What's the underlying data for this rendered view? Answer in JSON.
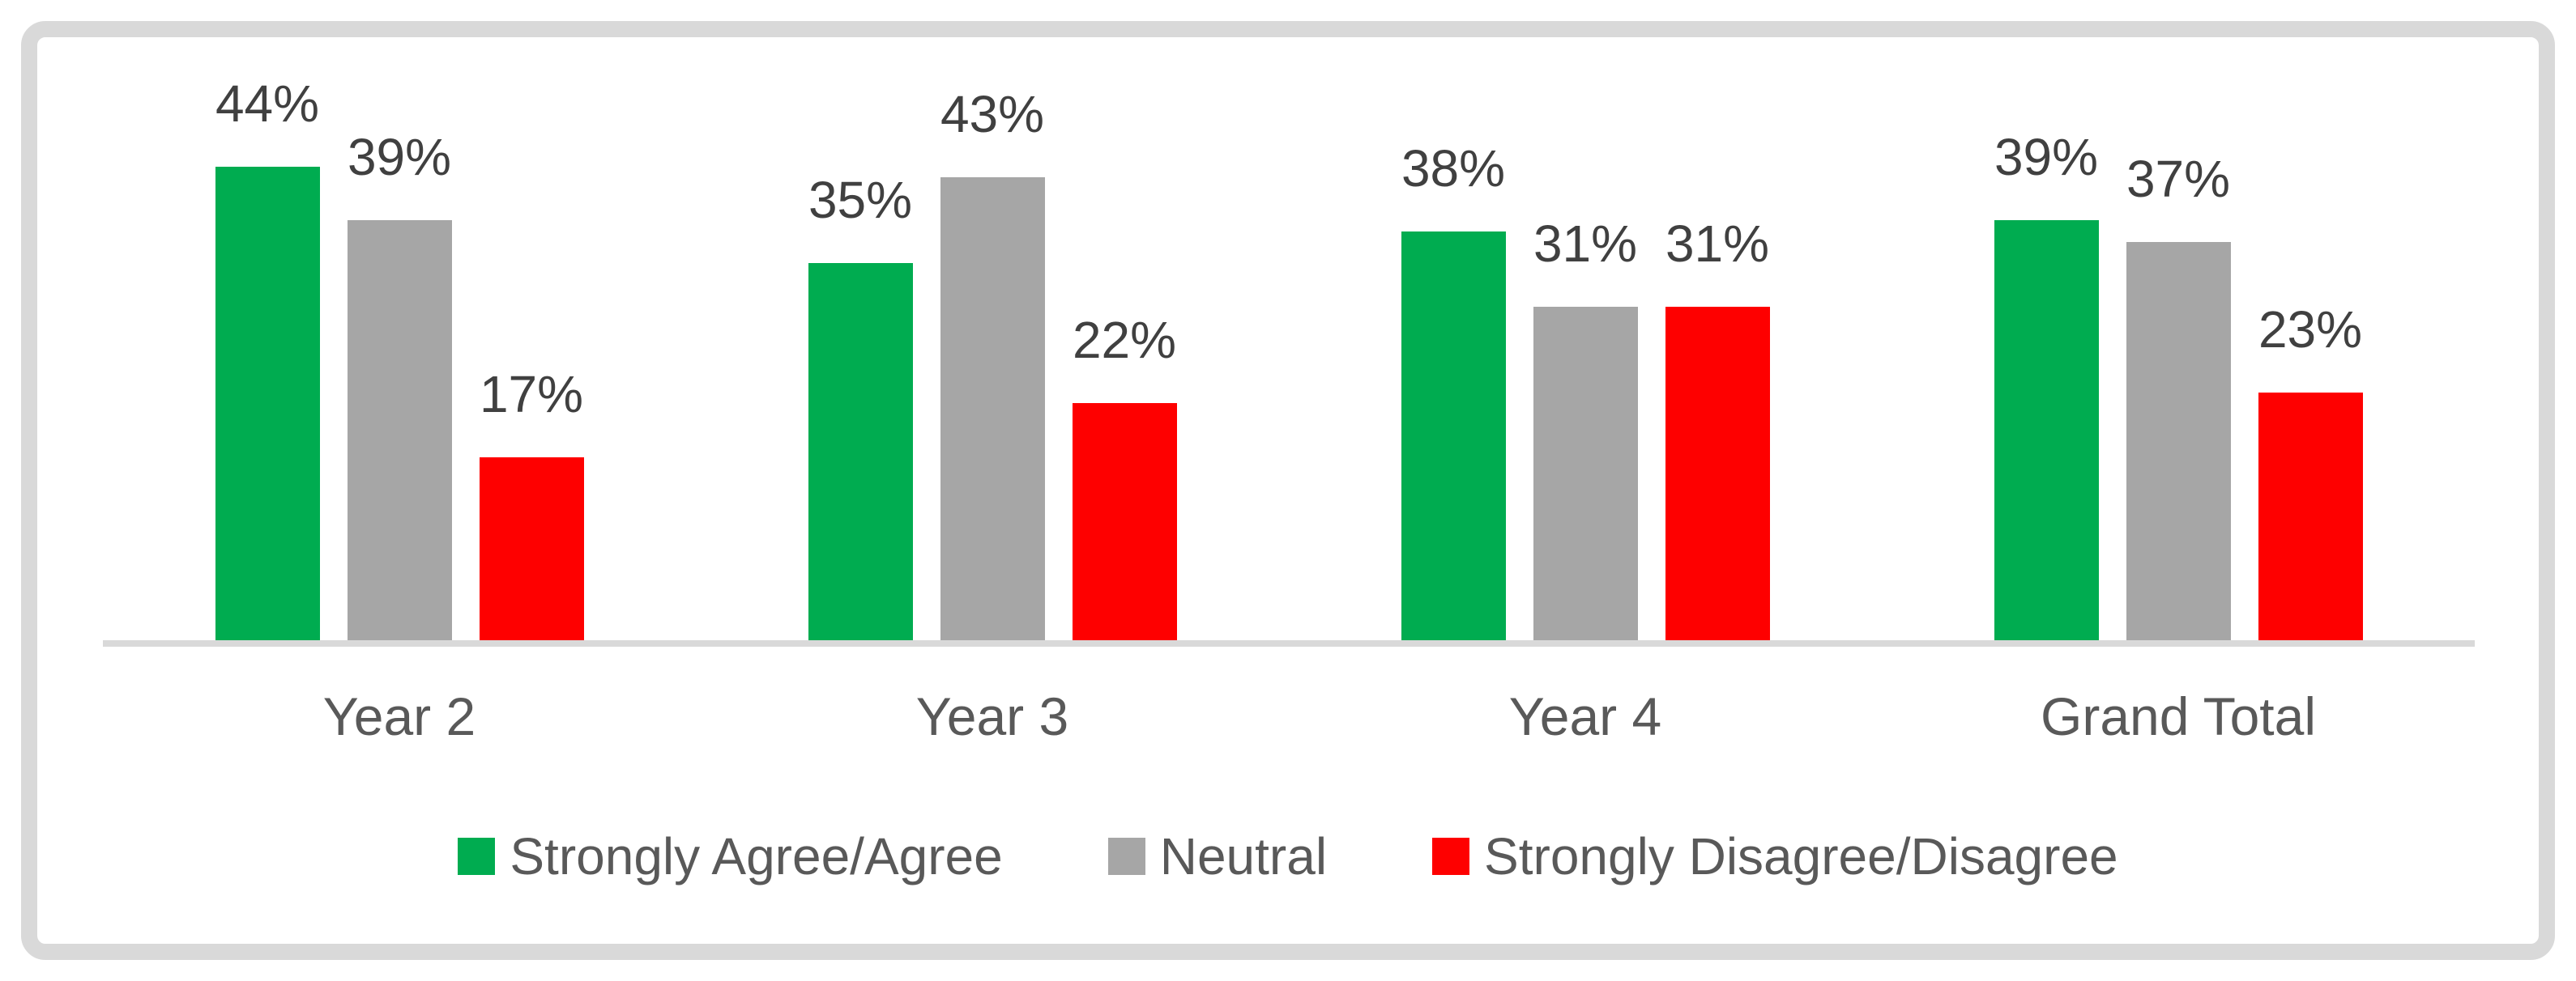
{
  "chart_data": {
    "type": "bar",
    "title": "",
    "xlabel": "",
    "ylabel": "",
    "categories": [
      "Year 2",
      "Year 3",
      "Year 4",
      "Grand Total"
    ],
    "series": [
      {
        "name": "Strongly Agree/Agree",
        "color": "#00AC50",
        "values": [
          44,
          35,
          38,
          39
        ]
      },
      {
        "name": "Neutral",
        "color": "#A6A6A6",
        "values": [
          39,
          43,
          31,
          37
        ]
      },
      {
        "name": "Strongly Disagree/Disagree",
        "color": "#FE0000",
        "values": [
          17,
          22,
          31,
          23
        ]
      }
    ],
    "data_labels": [
      [
        "44%",
        "39%",
        "17%"
      ],
      [
        "35%",
        "43%",
        "22%"
      ],
      [
        "38%",
        "31%",
        "31%"
      ],
      [
        "39%",
        "37%",
        "23%"
      ]
    ],
    "value_suffix": "%",
    "ylim": [
      0,
      50
    ],
    "grid": false,
    "y_axis_visible": false,
    "legend_position": "bottom"
  },
  "colors": {
    "background": "#FFFFFF",
    "frame_border": "#D9D9D9",
    "axis_line": "#D9D9D9",
    "data_label": "#404040",
    "category_label": "#595959",
    "legend_label": "#595959"
  }
}
